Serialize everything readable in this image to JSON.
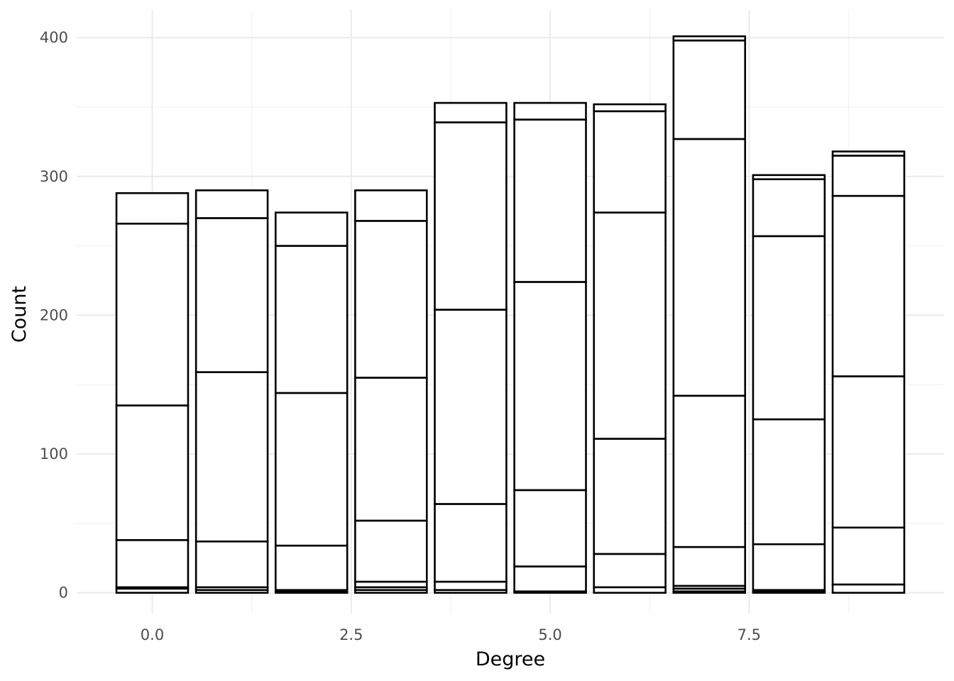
{
  "chart_data": {
    "type": "bar",
    "stacked": true,
    "title": "",
    "xlabel": "Degree",
    "ylabel": "Count",
    "xlim": [
      -0.95,
      9.95
    ],
    "ylim": [
      -15,
      420
    ],
    "x_ticks": [
      0,
      2.5,
      5,
      7.5
    ],
    "x_tick_labels": [
      "0.0",
      "2.5",
      "5.0",
      "7.5"
    ],
    "x_minor_ticks": [
      1.25,
      3.75,
      6.25,
      8.75
    ],
    "y_ticks": [
      0,
      100,
      200,
      300,
      400
    ],
    "y_tick_labels": [
      "0",
      "100",
      "200",
      "300",
      "400"
    ],
    "y_minor_ticks": [
      50,
      150,
      250,
      350
    ],
    "bar_width": 0.9,
    "grid": true,
    "legend": "none",
    "fill_color": "#ffffff",
    "stroke_color": "#000000",
    "x": [
      0,
      1,
      2,
      3,
      4,
      5,
      6,
      7,
      8,
      9
    ],
    "stacks": [
      [
        0,
        3,
        4,
        38,
        135,
        266,
        288
      ],
      [
        0,
        2,
        4,
        37,
        159,
        270,
        290
      ],
      [
        0,
        1,
        2,
        34,
        144,
        250,
        274
      ],
      [
        0,
        2,
        4,
        8,
        52,
        155,
        268,
        290
      ],
      [
        0,
        2,
        8,
        64,
        204,
        339,
        353
      ],
      [
        0,
        1,
        19,
        74,
        224,
        341,
        353
      ],
      [
        0,
        4,
        28,
        111,
        274,
        347,
        352
      ],
      [
        0,
        1,
        3,
        5,
        33,
        142,
        327,
        398,
        401
      ],
      [
        0,
        1,
        2,
        35,
        125,
        257,
        298,
        301
      ],
      [
        0,
        6,
        47,
        156,
        286,
        315,
        318
      ]
    ]
  }
}
